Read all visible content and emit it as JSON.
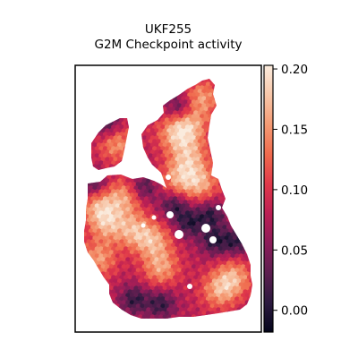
{
  "chart_data": {
    "type": "heatmap",
    "title": "UKF255",
    "subtitle": "G2M Checkpoint activity",
    "xlabel": "",
    "ylabel": "",
    "colorbar": {
      "min": -0.018,
      "max": 0.203,
      "ticks": [
        0.0,
        0.05,
        0.1,
        0.15,
        0.2
      ],
      "tick_labels": [
        "0.00",
        "0.05",
        "0.10",
        "0.15",
        "0.20"
      ],
      "colormap": "rocket",
      "stops": [
        "#03051a",
        "#2b1a3f",
        "#5c1e4f",
        "#8b1d59",
        "#bb1f54",
        "#e0384a",
        "#ef6a4d",
        "#f49a73",
        "#f7c6a8",
        "#faebdd"
      ]
    },
    "grid": false,
    "legend": "colorbar-right"
  }
}
